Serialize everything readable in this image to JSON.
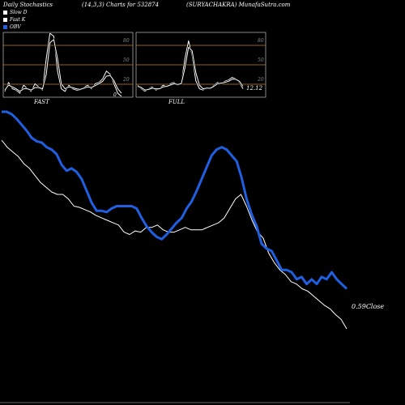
{
  "header": {
    "left": "Daily Stochastics",
    "mid": "(14,3,3) Charts for 532874",
    "right": "(SURYACHAKRA) MunafaSutra.com"
  },
  "legend": [
    {
      "label": "Slow  D",
      "color": "#ffffff"
    },
    {
      "label": "Fast K",
      "color": "#ffffff"
    },
    {
      "label": "OBV",
      "color": "#1f5fe0"
    }
  ],
  "panels": {
    "fast_label": "FAST",
    "full_label": "FULL",
    "fast_value": "0",
    "full_value": "12.12",
    "ticks": [
      "80",
      "50",
      "20"
    ]
  },
  "colors": {
    "background": "#000000",
    "obv": "#1f5fe0",
    "price": "#ffffff",
    "level_line": "#c8811a"
  },
  "chart_data": [
    {
      "type": "line",
      "title": "FAST",
      "ylim": [
        0,
        100
      ],
      "levels": [
        80,
        50,
        20
      ],
      "series": [
        {
          "name": "Fast K",
          "values": [
            8,
            22,
            12,
            10,
            5,
            18,
            12,
            8,
            20,
            15,
            10,
            60,
            100,
            95,
            40,
            12,
            8,
            18,
            12,
            10,
            10,
            14,
            18,
            12,
            20,
            22,
            28,
            40,
            35,
            20,
            5,
            0
          ]
        },
        {
          "name": "Slow  D",
          "values": [
            10,
            18,
            15,
            12,
            8,
            12,
            12,
            10,
            14,
            14,
            12,
            35,
            85,
            90,
            60,
            20,
            12,
            15,
            14,
            12,
            11,
            13,
            15,
            14,
            17,
            20,
            24,
            32,
            33,
            25,
            12,
            5
          ]
        }
      ]
    },
    {
      "type": "line",
      "title": "FULL",
      "ylim": [
        0,
        100
      ],
      "levels": [
        80,
        50,
        20
      ],
      "series": [
        {
          "name": "Fast K",
          "values": [
            18,
            12,
            8,
            12,
            15,
            10,
            12,
            18,
            15,
            20,
            22,
            18,
            20,
            60,
            88,
            65,
            25,
            12,
            10,
            14,
            12,
            18,
            22,
            20,
            24,
            26,
            30,
            28,
            22,
            12
          ]
        },
        {
          "name": "Slow  D",
          "values": [
            16,
            14,
            10,
            11,
            13,
            12,
            12,
            15,
            16,
            18,
            20,
            19,
            20,
            45,
            78,
            72,
            38,
            18,
            12,
            13,
            13,
            16,
            20,
            21,
            22,
            24,
            27,
            27,
            24,
            16
          ]
        }
      ]
    },
    {
      "type": "line",
      "title": "",
      "annotation": "0.59Close",
      "series": [
        {
          "name": "OBV",
          "values": [
            92,
            92,
            90,
            86,
            81,
            76,
            70,
            67,
            66,
            62,
            60,
            56,
            47,
            42,
            44,
            41,
            35,
            25,
            15,
            8,
            8,
            7,
            10,
            12,
            12,
            12,
            12,
            10,
            2,
            -5,
            -10,
            -14,
            -16,
            -12,
            -7,
            -2,
            2,
            10,
            16,
            25,
            35,
            45,
            55,
            60,
            62,
            60,
            55,
            50,
            36,
            18,
            5,
            -5,
            -20,
            -24,
            -26,
            -34,
            -42,
            -42,
            -44,
            -50,
            -48,
            -54,
            -50,
            -54,
            -48,
            -50,
            -44,
            -50,
            -54,
            -58
          ]
        },
        {
          "name": "Close",
          "values": [
            68,
            62,
            58,
            54,
            48,
            44,
            38,
            32,
            28,
            24,
            22,
            22,
            18,
            12,
            11,
            9,
            7,
            4,
            2,
            0,
            -2,
            -4,
            -10,
            -12,
            -9,
            -10,
            -6,
            -6,
            -4,
            -8,
            -10,
            -10,
            -8,
            -6,
            -8,
            -8,
            -8,
            -6,
            -4,
            -2,
            2,
            10,
            18,
            22,
            12,
            0,
            -10,
            -15,
            -28,
            -36,
            -42,
            -46,
            -52,
            -54,
            -58,
            -60,
            -64,
            -68,
            -72,
            -75,
            -80,
            -84,
            -92
          ]
        }
      ]
    }
  ]
}
